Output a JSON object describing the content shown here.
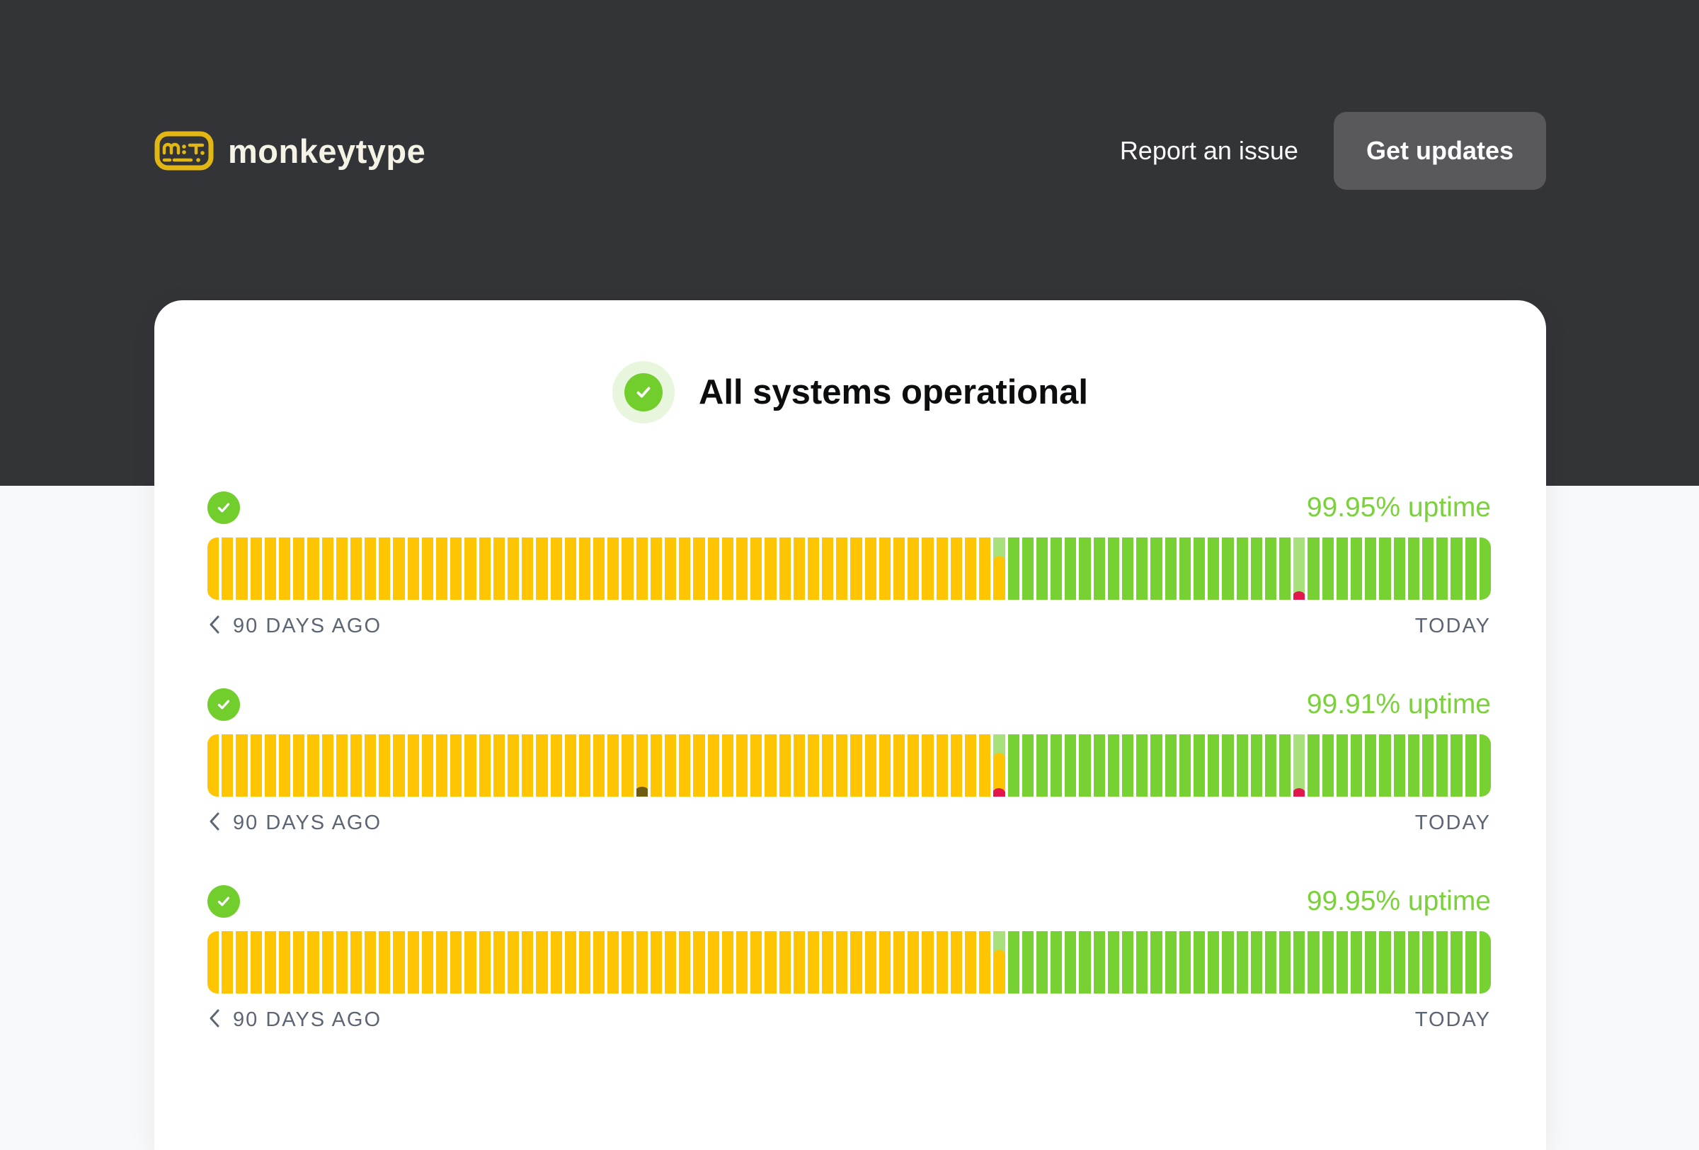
{
  "header": {
    "logo_text": "monkeytype",
    "report_link": "Report an issue",
    "updates_button": "Get updates"
  },
  "status_banner": {
    "text": "All systems operational",
    "state": "operational"
  },
  "timeline_labels": {
    "start": "90 DAYS AGO",
    "end": "TODAY"
  },
  "colors": {
    "header_bg": "#333438",
    "page_bg": "#f8f9fb",
    "card_bg": "#ffffff",
    "brand_yellow": "#e2b714",
    "logo_text": "#f5f2e6",
    "button_bg": "#59585d",
    "bar_yellow": "#ffc402",
    "bar_green": "#77d133",
    "bar_light_green": "#a8e17b",
    "incident_red": "#e2174b",
    "incident_olive": "#6e5d11",
    "status_green": "#72ce2d",
    "status_halo": "#e9f6de",
    "uptime_text_green": "#7ad13b",
    "timeline_label": "#5c6573"
  },
  "uptime_bars": [
    {
      "uptime_label": "99.95% uptime",
      "status": "operational",
      "total_days": 90,
      "transition_index": 55,
      "incidents": [
        {
          "index": 76,
          "background": "light-green",
          "dot": "red"
        }
      ]
    },
    {
      "uptime_label": "99.91% uptime",
      "status": "operational",
      "total_days": 90,
      "transition_index": 55,
      "incidents": [
        {
          "index": 30,
          "background": "yellow",
          "dot": "olive"
        },
        {
          "index": 55,
          "background": "transition",
          "dot": "red"
        },
        {
          "index": 76,
          "background": "light-green",
          "dot": "red"
        }
      ]
    },
    {
      "uptime_label": "99.95% uptime",
      "status": "operational",
      "total_days": 90,
      "transition_index": 55,
      "incidents": [],
      "partially_visible": true
    }
  ]
}
